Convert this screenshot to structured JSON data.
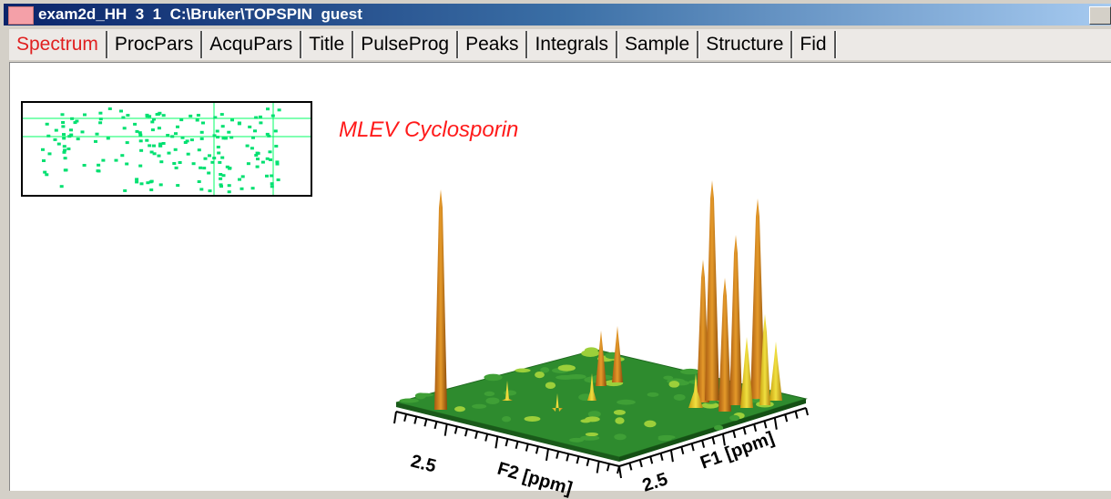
{
  "window": {
    "title": "exam2d_HH  3  1  C:\\Bruker\\TOPSPIN  guest"
  },
  "tabs": [
    "Spectrum",
    "ProcPars",
    "AcquPars",
    "Title",
    "PulseProg",
    "Peaks",
    "Integrals",
    "Sample",
    "Structure",
    "Fid"
  ],
  "active_tab": "Spectrum",
  "spectrum": {
    "title": "MLEV Cyclosporin",
    "f2_tick": "2.5",
    "f2_label": "F2 [ppm]",
    "f1_tick": "2.5",
    "f1_label": "F1 [ppm]"
  }
}
